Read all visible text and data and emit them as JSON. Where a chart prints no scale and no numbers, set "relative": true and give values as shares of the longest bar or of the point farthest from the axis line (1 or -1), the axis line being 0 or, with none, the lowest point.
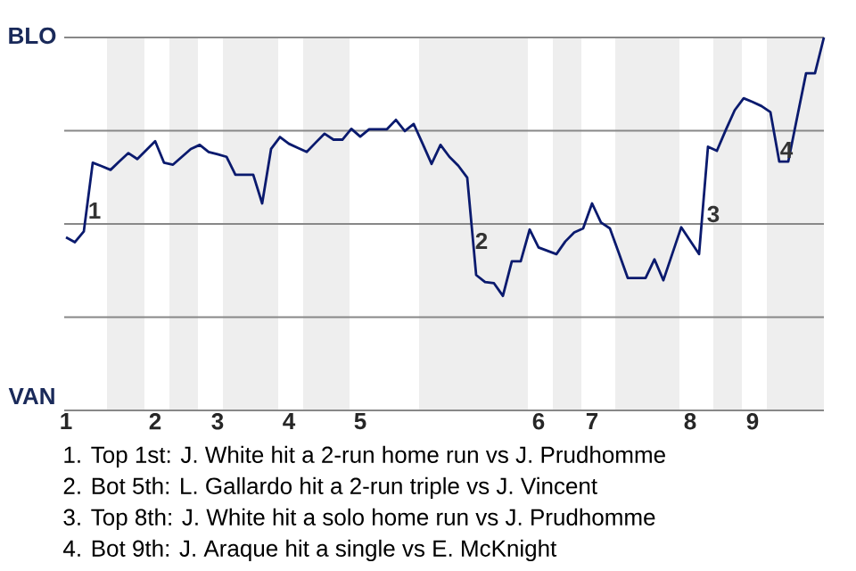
{
  "chart_data": {
    "type": "line",
    "relative": true,
    "categories": [
      "1",
      null,
      null,
      null,
      null,
      null,
      null,
      null,
      null,
      null,
      "2",
      null,
      null,
      null,
      null,
      null,
      null,
      "3",
      null,
      null,
      null,
      null,
      null,
      null,
      null,
      "4",
      null,
      null,
      null,
      null,
      null,
      null,
      null,
      "5",
      null,
      null,
      null,
      null,
      null,
      null,
      null,
      null,
      null,
      null,
      null,
      null,
      null,
      null,
      null,
      null,
      null,
      null,
      null,
      "6",
      null,
      null,
      null,
      null,
      null,
      "7",
      null,
      null,
      null,
      null,
      null,
      null,
      null,
      null,
      null,
      null,
      "8",
      null,
      null,
      null,
      null,
      null,
      null,
      "9",
      null,
      null,
      null,
      null,
      null,
      null,
      null,
      null
    ],
    "values": [
      0.464,
      0.451,
      0.48,
      0.664,
      0.655,
      0.645,
      0.668,
      0.69,
      0.674,
      0.698,
      0.722,
      0.664,
      0.659,
      0.68,
      0.701,
      0.712,
      0.693,
      0.687,
      0.68,
      0.632,
      0.632,
      0.632,
      0.555,
      0.701,
      0.733,
      0.715,
      0.704,
      0.693,
      0.718,
      0.742,
      0.726,
      0.726,
      0.755,
      0.734,
      0.754,
      0.754,
      0.754,
      0.779,
      0.749,
      0.768,
      0.715,
      0.661,
      0.712,
      0.68,
      0.656,
      0.624,
      0.363,
      0.344,
      0.341,
      0.307,
      0.4,
      0.4,
      0.485,
      0.437,
      0.428,
      0.419,
      0.453,
      0.477,
      0.488,
      0.555,
      0.504,
      0.488,
      0.422,
      0.355,
      0.355,
      0.355,
      0.405,
      0.349,
      0.42,
      0.491,
      0.455,
      0.419,
      0.707,
      0.696,
      0.752,
      0.805,
      0.837,
      0.827,
      0.816,
      0.8,
      0.667,
      0.667,
      0.786,
      0.904,
      0.904,
      1.0
    ],
    "color": "#0a1a6e",
    "grid": "y",
    "annotations": [
      "BLO",
      "VAN",
      "1",
      "2",
      "3",
      "4",
      "1. Top 1st: J. White hit a 2-run home run vs J. Prudhomme",
      "2. Bot 5th: L. Gallardo hit a 2-run triple vs J. Vincent",
      "3. Top 8th: J. White hit a solo home run vs J. Prudhomme",
      "4. Bot 9th: J. Araque hit a single vs E. McKnight"
    ]
  }
}
